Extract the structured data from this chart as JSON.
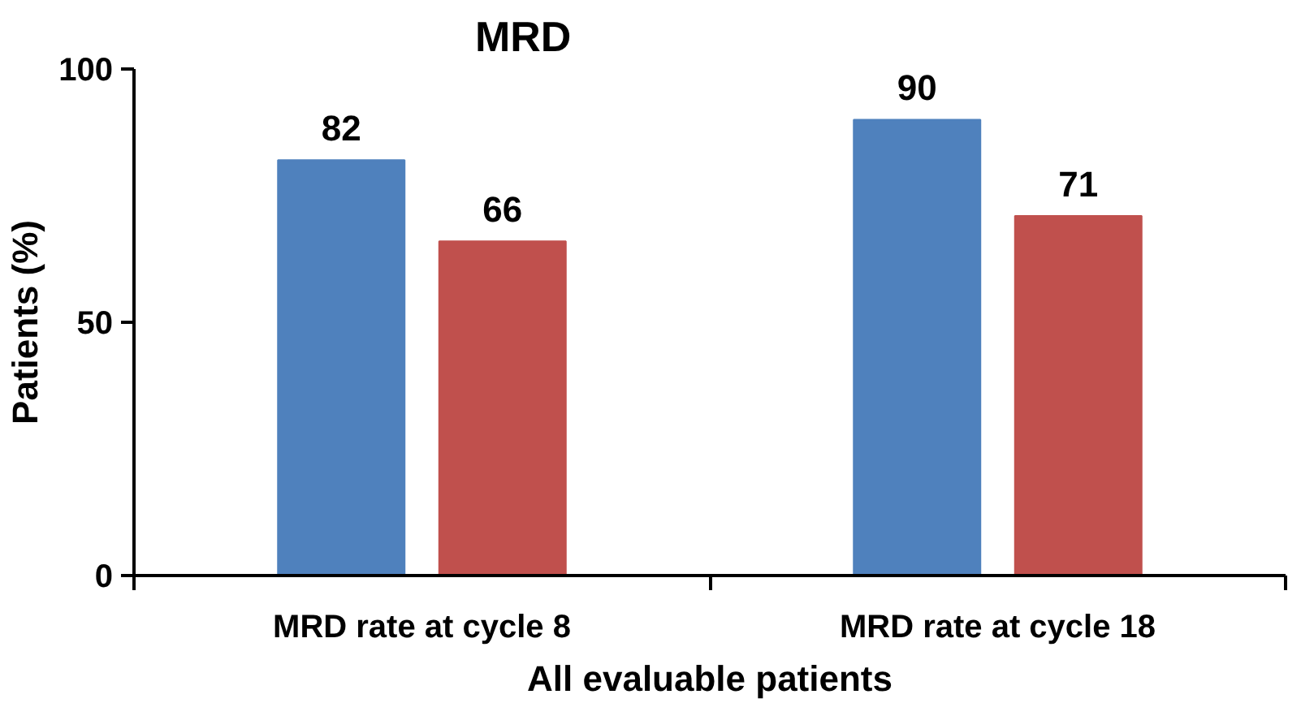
{
  "chart_data": {
    "type": "bar",
    "title": "MRD",
    "xlabel": "All evaluable patients",
    "ylabel": "Patients (%)",
    "categories": [
      "MRD rate at cycle 8",
      "MRD rate at cycle 18"
    ],
    "series": [
      {
        "color": "#4f81bd",
        "values": [
          82,
          90
        ]
      },
      {
        "color": "#c0504d",
        "values": [
          66,
          71
        ]
      }
    ],
    "ylim": [
      0,
      100
    ],
    "yticks": [
      0,
      50,
      100
    ],
    "data_labels": true
  }
}
